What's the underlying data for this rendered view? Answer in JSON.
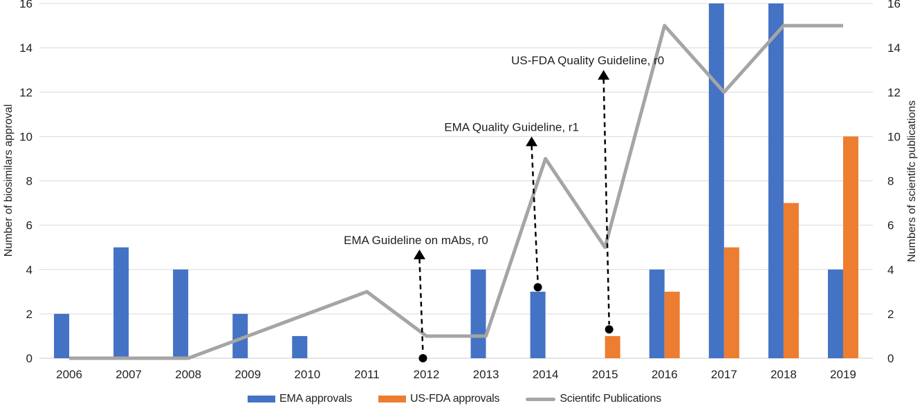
{
  "chart_data": {
    "type": "bar",
    "subtype": "clustered-bars-with-line-combo",
    "categories": [
      "2006",
      "2007",
      "2008",
      "2009",
      "2010",
      "2011",
      "2012",
      "2013",
      "2014",
      "2015",
      "2016",
      "2017",
      "2018",
      "2019"
    ],
    "series": [
      {
        "name": "EMA approvals",
        "type": "bar",
        "color": "#4472C4",
        "values": [
          2,
          5,
          4,
          2,
          1,
          0,
          0,
          4,
          3,
          0,
          4,
          16,
          16,
          4
        ]
      },
      {
        "name": "US-FDA approvals",
        "type": "bar",
        "color": "#ED7D31",
        "values": [
          0,
          0,
          0,
          0,
          0,
          0,
          0,
          0,
          0,
          1,
          3,
          5,
          7,
          10
        ]
      },
      {
        "name": "Scientifc Publications",
        "type": "line",
        "color": "#A5A5A5",
        "values": [
          0,
          0,
          0,
          1,
          2,
          3,
          1,
          1,
          9,
          5,
          15,
          12,
          15,
          15
        ]
      }
    ],
    "left_axis": {
      "title": "Number of biosimilars approval",
      "min": 0,
      "max": 16,
      "step": 2
    },
    "right_axis": {
      "title": "Numbers of scientifc publications",
      "min": 0,
      "max": 16,
      "step": 2
    },
    "annotations": [
      {
        "label": "EMA Guideline on mAbs, r0",
        "year": "2012",
        "dot_value": 0,
        "tip_value": 4.9,
        "dot_dx": -5,
        "tip_dx": -10,
        "text_dx": -15
      },
      {
        "label": "EMA Quality Guideline, r1",
        "year": "2014",
        "dot_value": 3.2,
        "tip_value": 10.0,
        "dot_dx": -11,
        "tip_dx": -20,
        "text_dx": -49
      },
      {
        "label": "US-FDA Quality Guideline, r0",
        "year": "2015",
        "dot_value": 1.3,
        "tip_value": 13.0,
        "dot_dx": 6,
        "tip_dx": -2,
        "text_dx": -25
      }
    ],
    "legend": {
      "position": "bottom"
    },
    "grid": true,
    "colors": {
      "gridline": "#D9D9D9",
      "axis_line": "#C9C9C9",
      "annotation": "#000000",
      "text": "#1f1f1f"
    }
  }
}
